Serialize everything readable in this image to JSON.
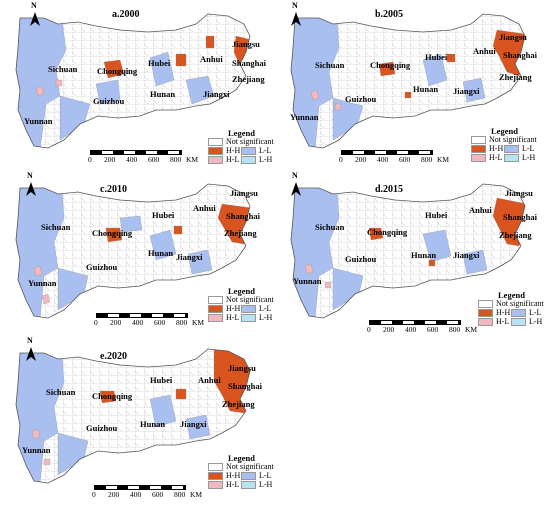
{
  "panels": [
    {
      "title": "a.2000"
    },
    {
      "title": "b.2005"
    },
    {
      "title": "c.2010"
    },
    {
      "title": "d.2015"
    },
    {
      "title": "e.2020"
    }
  ],
  "provinces": {
    "sichuan": "Sichuan",
    "chongqing": "Chongqing",
    "hubei": "Hubei",
    "anhui": "Anhui",
    "jiangsu": "Jiangsu",
    "shanghai": "Shanghai",
    "zhejiang": "Zhejiang",
    "guizhou": "Guizhou",
    "hunan": "Hunan",
    "jiangxi": "Jiangxi",
    "yunnan": "Yunnan"
  },
  "north_label": "N",
  "legend": {
    "title": "Legend",
    "not_significant": "Not significant",
    "hh": "H-H",
    "hl": "H-L",
    "ll": "L-L",
    "lh": "L-H"
  },
  "scale_bar": {
    "ticks": [
      "0",
      "200",
      "400",
      "600",
      "800"
    ],
    "unit": "KM"
  },
  "colors": {
    "hh": "#d9541e",
    "hl": "#f2b8c0",
    "ll": "#a9bff0",
    "lh": "#b9e2f3",
    "not_significant": "#ffffff",
    "boundary": "#8a8a8a"
  }
}
